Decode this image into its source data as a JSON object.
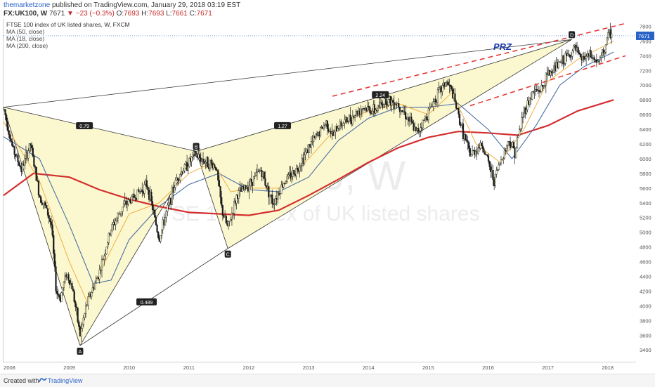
{
  "header": {
    "author": "themarketzone",
    "published_text": "published on TradingView.com, January 29, 2018 03:19 EST",
    "symbol": "FX:UK100, W",
    "last": "7671",
    "change": "−23 (−0.3%)",
    "o_label": "O:",
    "o": "7693",
    "h_label": "H:",
    "h": "7693",
    "l_label": "L:",
    "l": "7661",
    "c_label": "C:",
    "c": "7671"
  },
  "studies": {
    "title": "FTSE 100 index of UK listed shares, W, FXCM",
    "ma50": "MA (50, close)",
    "ma18": "MA (18, close)",
    "ma200": "MA (200, close)"
  },
  "watermark": {
    "big": "UK100, W",
    "sub": "FTSE 100 index of UK listed shares"
  },
  "annotations": {
    "prz": "PRZ",
    "ratio_bd": "1.27",
    "ratio_xb": "0.79",
    "ratio_ac": "0.489",
    "ratio_cd": "2.24",
    "pt_a": "A",
    "pt_b": "B",
    "pt_c": "C",
    "pt_d": "D"
  },
  "price_label": "7671",
  "footer": {
    "created": "Created with",
    "brand": "TradingView"
  },
  "colors": {
    "up": "#1a1a1a",
    "candle_fill": "#f3f3c8",
    "ma200": "#d32f2f",
    "ma50": "#4a6fa5",
    "ma18": "#f0a830",
    "pattern_fill": "#fbf7cf",
    "channel": "#e53935",
    "prz": "#1a3ca8",
    "price_tag": "#2962c7"
  },
  "chart_data": {
    "type": "candlestick",
    "title": "FTSE 100 index of UK listed shares, W, FXCM",
    "xlabel": "",
    "ylabel": "",
    "ylim": [
      3240,
      7900
    ],
    "y_ticks": [
      3400,
      3600,
      3800,
      4000,
      4200,
      4400,
      4600,
      4800,
      5000,
      5200,
      5400,
      5600,
      5800,
      6000,
      6200,
      6400,
      6600,
      6800,
      7000,
      7200,
      7400,
      7600,
      7800
    ],
    "x_ticks": [
      "2008",
      "2009",
      "2010",
      "2011",
      "2012",
      "2013",
      "2014",
      "2015",
      "2016",
      "2017",
      "2018"
    ],
    "xlim": [
      2007.9,
      2018.45
    ],
    "price_path": [
      [
        2007.9,
        6700
      ],
      [
        2008.05,
        6150
      ],
      [
        2008.2,
        5850
      ],
      [
        2008.35,
        6200
      ],
      [
        2008.5,
        5500
      ],
      [
        2008.6,
        5350
      ],
      [
        2008.7,
        5100
      ],
      [
        2008.78,
        4200
      ],
      [
        2008.85,
        4100
      ],
      [
        2008.95,
        4450
      ],
      [
        2009.05,
        4250
      ],
      [
        2009.18,
        3600
      ],
      [
        2009.3,
        4050
      ],
      [
        2009.5,
        4450
      ],
      [
        2009.7,
        5050
      ],
      [
        2009.9,
        5350
      ],
      [
        2010.1,
        5500
      ],
      [
        2010.3,
        5650
      ],
      [
        2010.4,
        5300
      ],
      [
        2010.5,
        4900
      ],
      [
        2010.6,
        5200
      ],
      [
        2010.8,
        5750
      ],
      [
        2011.0,
        5950
      ],
      [
        2011.1,
        6050
      ],
      [
        2011.3,
        5950
      ],
      [
        2011.45,
        5900
      ],
      [
        2011.55,
        5300
      ],
      [
        2011.65,
        5050
      ],
      [
        2011.8,
        5500
      ],
      [
        2012.0,
        5650
      ],
      [
        2012.2,
        5850
      ],
      [
        2012.4,
        5400
      ],
      [
        2012.6,
        5700
      ],
      [
        2012.8,
        5850
      ],
      [
        2013.0,
        6150
      ],
      [
        2013.3,
        6500
      ],
      [
        2013.4,
        6300
      ],
      [
        2013.5,
        6450
      ],
      [
        2013.7,
        6550
      ],
      [
        2013.9,
        6700
      ],
      [
        2014.1,
        6650
      ],
      [
        2014.3,
        6800
      ],
      [
        2014.5,
        6750
      ],
      [
        2014.7,
        6500
      ],
      [
        2014.8,
        6350
      ],
      [
        2014.95,
        6550
      ],
      [
        2015.1,
        6800
      ],
      [
        2015.3,
        7050
      ],
      [
        2015.4,
        6900
      ],
      [
        2015.6,
        6300
      ],
      [
        2015.7,
        6050
      ],
      [
        2015.9,
        6200
      ],
      [
        2016.1,
        5700
      ],
      [
        2016.2,
        5950
      ],
      [
        2016.35,
        6250
      ],
      [
        2016.45,
        6100
      ],
      [
        2016.6,
        6650
      ],
      [
        2016.75,
        6900
      ],
      [
        2016.9,
        6950
      ],
      [
        2017.0,
        7150
      ],
      [
        2017.2,
        7300
      ],
      [
        2017.35,
        7400
      ],
      [
        2017.45,
        7500
      ],
      [
        2017.55,
        7350
      ],
      [
        2017.7,
        7400
      ],
      [
        2017.85,
        7300
      ],
      [
        2017.95,
        7500
      ],
      [
        2018.0,
        7650
      ],
      [
        2018.05,
        7720
      ],
      [
        2018.08,
        7671
      ]
    ],
    "ma200": [
      [
        2007.9,
        5500
      ],
      [
        2008.4,
        5800
      ],
      [
        2009.0,
        5750
      ],
      [
        2009.5,
        5580
      ],
      [
        2010.0,
        5450
      ],
      [
        2010.5,
        5350
      ],
      [
        2011.0,
        5270
      ],
      [
        2011.5,
        5250
      ],
      [
        2012.0,
        5230
      ],
      [
        2012.5,
        5300
      ],
      [
        2013.0,
        5500
      ],
      [
        2013.5,
        5720
      ],
      [
        2014.0,
        5950
      ],
      [
        2014.5,
        6150
      ],
      [
        2015.0,
        6290
      ],
      [
        2015.5,
        6370
      ],
      [
        2016.0,
        6350
      ],
      [
        2016.5,
        6320
      ],
      [
        2017.0,
        6450
      ],
      [
        2017.5,
        6650
      ],
      [
        2018.1,
        6800
      ]
    ],
    "ma50": [
      [
        2007.9,
        6300
      ],
      [
        2008.5,
        6000
      ],
      [
        2009.0,
        5100
      ],
      [
        2009.4,
        4300
      ],
      [
        2009.7,
        4350
      ],
      [
        2010.0,
        4900
      ],
      [
        2010.5,
        5350
      ],
      [
        2011.0,
        5650
      ],
      [
        2011.5,
        5800
      ],
      [
        2012.0,
        5580
      ],
      [
        2012.5,
        5550
      ],
      [
        2013.0,
        5750
      ],
      [
        2013.5,
        6250
      ],
      [
        2014.0,
        6550
      ],
      [
        2014.5,
        6700
      ],
      [
        2015.0,
        6700
      ],
      [
        2015.5,
        6750
      ],
      [
        2016.0,
        6400
      ],
      [
        2016.4,
        6000
      ],
      [
        2016.8,
        6450
      ],
      [
        2017.2,
        7000
      ],
      [
        2017.6,
        7250
      ],
      [
        2018.1,
        7450
      ]
    ],
    "ma18": [
      [
        2007.9,
        6500
      ],
      [
        2008.5,
        5700
      ],
      [
        2009.0,
        4600
      ],
      [
        2009.3,
        4050
      ],
      [
        2009.6,
        4600
      ],
      [
        2010.0,
        5250
      ],
      [
        2010.5,
        5400
      ],
      [
        2011.0,
        5800
      ],
      [
        2011.4,
        5950
      ],
      [
        2011.7,
        5550
      ],
      [
        2012.0,
        5600
      ],
      [
        2012.5,
        5600
      ],
      [
        2013.0,
        6000
      ],
      [
        2013.5,
        6450
      ],
      [
        2014.0,
        6650
      ],
      [
        2014.5,
        6750
      ],
      [
        2015.0,
        6600
      ],
      [
        2015.4,
        6900
      ],
      [
        2015.8,
        6200
      ],
      [
        2016.2,
        5950
      ],
      [
        2016.6,
        6400
      ],
      [
        2017.0,
        7050
      ],
      [
        2017.5,
        7350
      ],
      [
        2018.1,
        7600
      ]
    ],
    "harmonic": {
      "X": [
        2007.9,
        6700
      ],
      "A": [
        2009.18,
        3460
      ],
      "B": [
        2011.12,
        6100
      ],
      "C": [
        2011.65,
        4780
      ],
      "D": [
        2017.4,
        7620
      ]
    },
    "channel_upper": [
      [
        2013.4,
        6850
      ],
      [
        2018.3,
        7840
      ]
    ],
    "channel_lower": [
      [
        2015.7,
        6720
      ],
      [
        2018.3,
        7400
      ]
    ]
  }
}
